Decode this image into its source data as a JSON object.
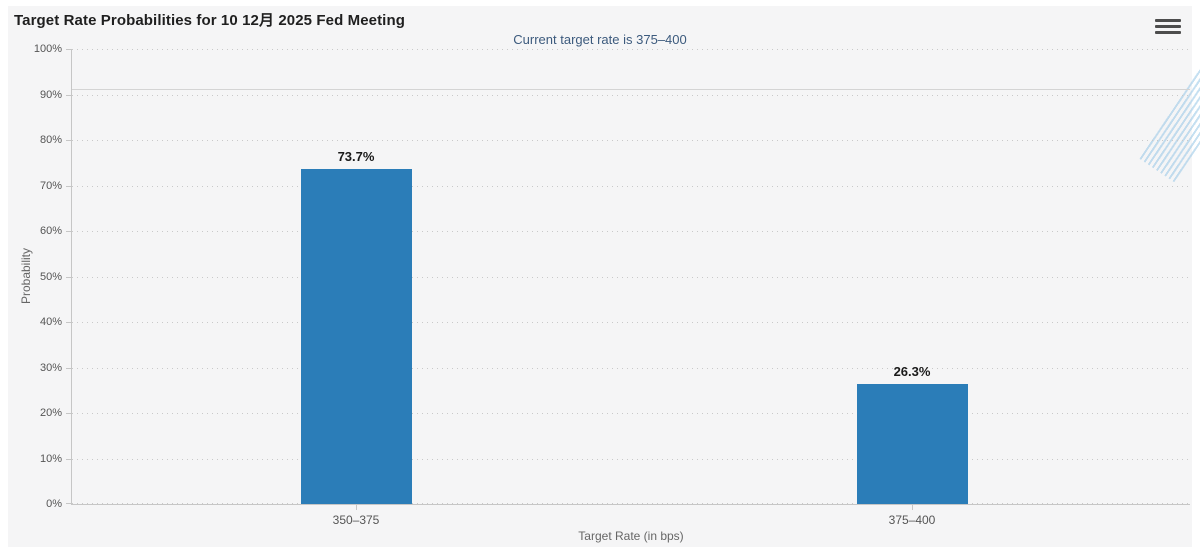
{
  "header": {
    "menu_icon": "hamburger-icon"
  },
  "watermark": {
    "letter": "Q"
  },
  "colors": {
    "bar": "#2b7db8",
    "background": "#f5f5f6",
    "subtitle_text": "#3c5a7d",
    "axis_text": "#555555",
    "gridline": "#c9c9c9"
  },
  "chart_data": {
    "type": "bar",
    "title": "Target Rate Probabilities for 10 12月 2025 Fed Meeting",
    "subtitle": "Current target rate is 375–400",
    "categories": [
      "350–375",
      "375–400"
    ],
    "values": [
      73.7,
      26.3
    ],
    "value_labels": [
      "73.7%",
      "26.3%"
    ],
    "xlabel": "Target Rate (in bps)",
    "ylabel": "Probability",
    "ylim": [
      0,
      100
    ],
    "ytick_step": 10,
    "yticks": [
      "0%",
      "10%",
      "20%",
      "30%",
      "40%",
      "50%",
      "60%",
      "70%",
      "80%",
      "90%",
      "100%"
    ],
    "grid": "horizontal-dotted",
    "legend": "none",
    "bar_color": "#2b7db8",
    "plot_background": "#f5f5f6"
  }
}
